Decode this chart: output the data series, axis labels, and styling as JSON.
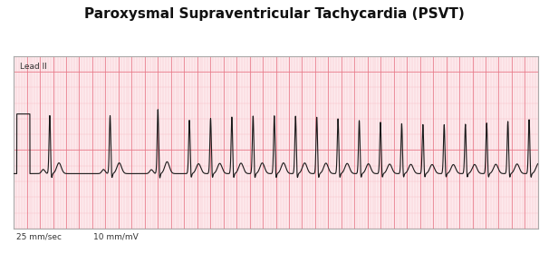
{
  "title": "Paroxysmal Supraventricular Tachycardia (PSVT)",
  "title_fontsize": 11,
  "title_fontweight": "bold",
  "lead_label": "Lead II",
  "bottom_left": "25 mm/sec",
  "bottom_right": "10 mm/mV",
  "bg_color": "#ffffff",
  "grid_color_minor": "#f7b8c0",
  "grid_color_major": "#e87888",
  "ecg_color": "#1a1a1a",
  "ecg_linewidth": 0.8,
  "paper_bg": "#fdeaed",
  "border_color": "#aaaaaa",
  "ymin": -0.35,
  "ymax": 0.75,
  "duration": 8.0
}
